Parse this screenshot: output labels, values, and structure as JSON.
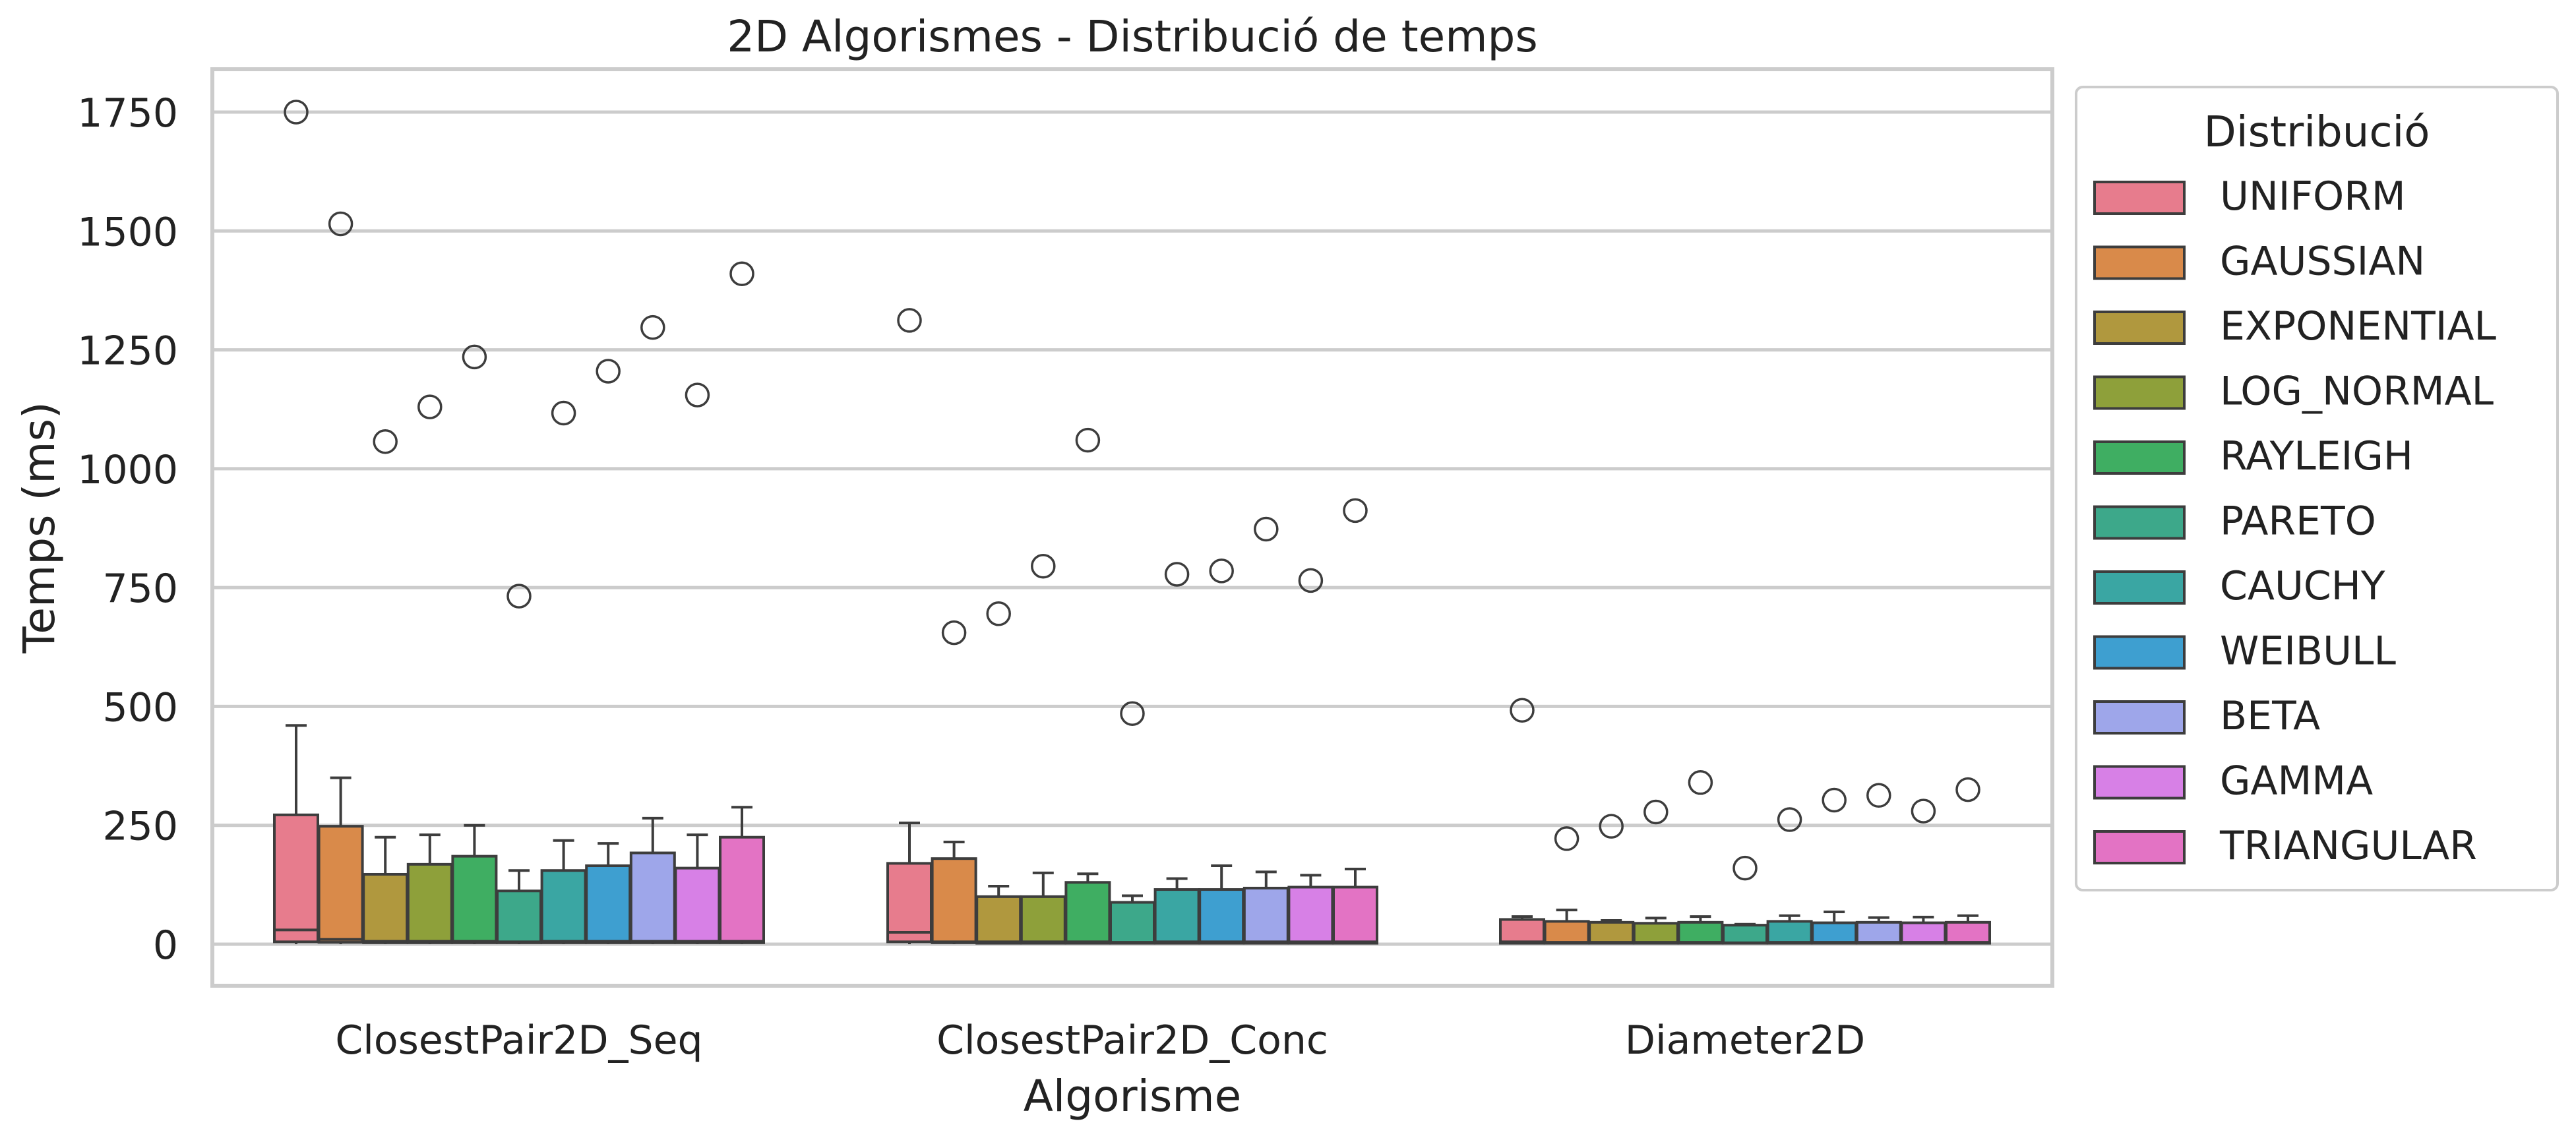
{
  "chart_data": {
    "type": "box",
    "title": "2D Algorismes - Distribució de temps",
    "xlabel": "Algorisme",
    "ylabel": "Temps (ms)",
    "ylim": [
      -85,
      1850
    ],
    "yticks": [
      0,
      250,
      500,
      750,
      1000,
      1250,
      1500,
      1750
    ],
    "grid": "horizontal",
    "legend": {
      "title": "Distribució",
      "placement": "outside-right"
    },
    "categories": [
      "ClosestPair2D_Seq",
      "ClosestPair2D_Conc",
      "Diameter2D"
    ],
    "series": [
      {
        "name": "UNIFORM",
        "color": "#e77c8d",
        "boxes": [
          {
            "q1": 5,
            "median": 30,
            "q3": 272,
            "whisker_low": 0,
            "whisker_high": 460,
            "outliers": [
              1750
            ]
          },
          {
            "q1": 5,
            "median": 25,
            "q3": 170,
            "whisker_low": 0,
            "whisker_high": 255,
            "outliers": [
              1312
            ]
          },
          {
            "q1": 2,
            "median": 5,
            "q3": 52,
            "whisker_low": 0,
            "whisker_high": 58,
            "outliers": [
              492
            ]
          }
        ]
      },
      {
        "name": "GAUSSIAN",
        "color": "#d98a4a",
        "boxes": [
          {
            "q1": 4,
            "median": 10,
            "q3": 248,
            "whisker_low": 0,
            "whisker_high": 350,
            "outliers": [
              1515
            ]
          },
          {
            "q1": 3,
            "median": 5,
            "q3": 180,
            "whisker_low": 0,
            "whisker_high": 215,
            "outliers": [
              655
            ]
          },
          {
            "q1": 2,
            "median": 4,
            "q3": 48,
            "whisker_low": 0,
            "whisker_high": 72,
            "outliers": [
              222
            ]
          }
        ]
      },
      {
        "name": "EXPONENTIAL",
        "color": "#b0983e",
        "boxes": [
          {
            "q1": 3,
            "median": 6,
            "q3": 147,
            "whisker_low": 0,
            "whisker_high": 225,
            "outliers": [
              1057
            ]
          },
          {
            "q1": 2,
            "median": 5,
            "q3": 100,
            "whisker_low": 0,
            "whisker_high": 122,
            "outliers": [
              695
            ]
          },
          {
            "q1": 2,
            "median": 4,
            "q3": 46,
            "whisker_low": 0,
            "whisker_high": 50,
            "outliers": [
              248
            ]
          }
        ]
      },
      {
        "name": "LOG_NORMAL",
        "color": "#8ea03a",
        "boxes": [
          {
            "q1": 3,
            "median": 6,
            "q3": 168,
            "whisker_low": 0,
            "whisker_high": 230,
            "outliers": [
              1130
            ]
          },
          {
            "q1": 2,
            "median": 5,
            "q3": 100,
            "whisker_low": 0,
            "whisker_high": 150,
            "outliers": [
              795
            ]
          },
          {
            "q1": 2,
            "median": 4,
            "q3": 44,
            "whisker_low": 0,
            "whisker_high": 55,
            "outliers": [
              278
            ]
          }
        ]
      },
      {
        "name": "RAYLEIGH",
        "color": "#3fae62",
        "boxes": [
          {
            "q1": 3,
            "median": 6,
            "q3": 185,
            "whisker_low": 0,
            "whisker_high": 250,
            "outliers": [
              1235
            ]
          },
          {
            "q1": 2,
            "median": 5,
            "q3": 130,
            "whisker_low": 0,
            "whisker_high": 148,
            "outliers": [
              1060
            ]
          },
          {
            "q1": 2,
            "median": 4,
            "q3": 46,
            "whisker_low": 0,
            "whisker_high": 58,
            "outliers": [
              340
            ]
          }
        ]
      },
      {
        "name": "PARETO",
        "color": "#3da88a",
        "boxes": [
          {
            "q1": 3,
            "median": 5,
            "q3": 112,
            "whisker_low": 0,
            "whisker_high": 155,
            "outliers": [
              732
            ]
          },
          {
            "q1": 2,
            "median": 4,
            "q3": 88,
            "whisker_low": 0,
            "whisker_high": 102,
            "outliers": [
              485
            ]
          },
          {
            "q1": 2,
            "median": 3,
            "q3": 40,
            "whisker_low": 0,
            "whisker_high": 42,
            "outliers": [
              160
            ]
          }
        ]
      },
      {
        "name": "CAUCHY",
        "color": "#3aa6a3",
        "boxes": [
          {
            "q1": 3,
            "median": 6,
            "q3": 155,
            "whisker_low": 0,
            "whisker_high": 218,
            "outliers": [
              1117
            ]
          },
          {
            "q1": 2,
            "median": 5,
            "q3": 115,
            "whisker_low": 0,
            "whisker_high": 138,
            "outliers": [
              778
            ]
          },
          {
            "q1": 2,
            "median": 4,
            "q3": 48,
            "whisker_low": 0,
            "whisker_high": 60,
            "outliers": [
              262
            ]
          }
        ]
      },
      {
        "name": "WEIBULL",
        "color": "#3e9fd0",
        "boxes": [
          {
            "q1": 3,
            "median": 6,
            "q3": 165,
            "whisker_low": 0,
            "whisker_high": 212,
            "outliers": [
              1205
            ]
          },
          {
            "q1": 2,
            "median": 5,
            "q3": 115,
            "whisker_low": 0,
            "whisker_high": 165,
            "outliers": [
              785
            ]
          },
          {
            "q1": 2,
            "median": 4,
            "q3": 45,
            "whisker_low": 0,
            "whisker_high": 68,
            "outliers": [
              303
            ]
          }
        ]
      },
      {
        "name": "BETA",
        "color": "#9ea6ea",
        "boxes": [
          {
            "q1": 3,
            "median": 6,
            "q3": 192,
            "whisker_low": 0,
            "whisker_high": 265,
            "outliers": [
              1297
            ]
          },
          {
            "q1": 2,
            "median": 5,
            "q3": 118,
            "whisker_low": 0,
            "whisker_high": 152,
            "outliers": [
              873
            ]
          },
          {
            "q1": 2,
            "median": 4,
            "q3": 46,
            "whisker_low": 0,
            "whisker_high": 56,
            "outliers": [
              313
            ]
          }
        ]
      },
      {
        "name": "GAMMA",
        "color": "#d780e6",
        "boxes": [
          {
            "q1": 3,
            "median": 6,
            "q3": 160,
            "whisker_low": 0,
            "whisker_high": 230,
            "outliers": [
              1155
            ]
          },
          {
            "q1": 2,
            "median": 5,
            "q3": 120,
            "whisker_low": 0,
            "whisker_high": 145,
            "outliers": [
              765
            ]
          },
          {
            "q1": 2,
            "median": 4,
            "q3": 45,
            "whisker_low": 0,
            "whisker_high": 57,
            "outliers": [
              280
            ]
          }
        ]
      },
      {
        "name": "TRIANGULAR",
        "color": "#e373c4",
        "boxes": [
          {
            "q1": 3,
            "median": 6,
            "q3": 225,
            "whisker_low": 0,
            "whisker_high": 288,
            "outliers": [
              1410
            ]
          },
          {
            "q1": 2,
            "median": 5,
            "q3": 120,
            "whisker_low": 0,
            "whisker_high": 158,
            "outliers": [
              912
            ]
          },
          {
            "q1": 2,
            "median": 4,
            "q3": 46,
            "whisker_low": 0,
            "whisker_high": 60,
            "outliers": [
              325
            ]
          }
        ]
      }
    ]
  }
}
